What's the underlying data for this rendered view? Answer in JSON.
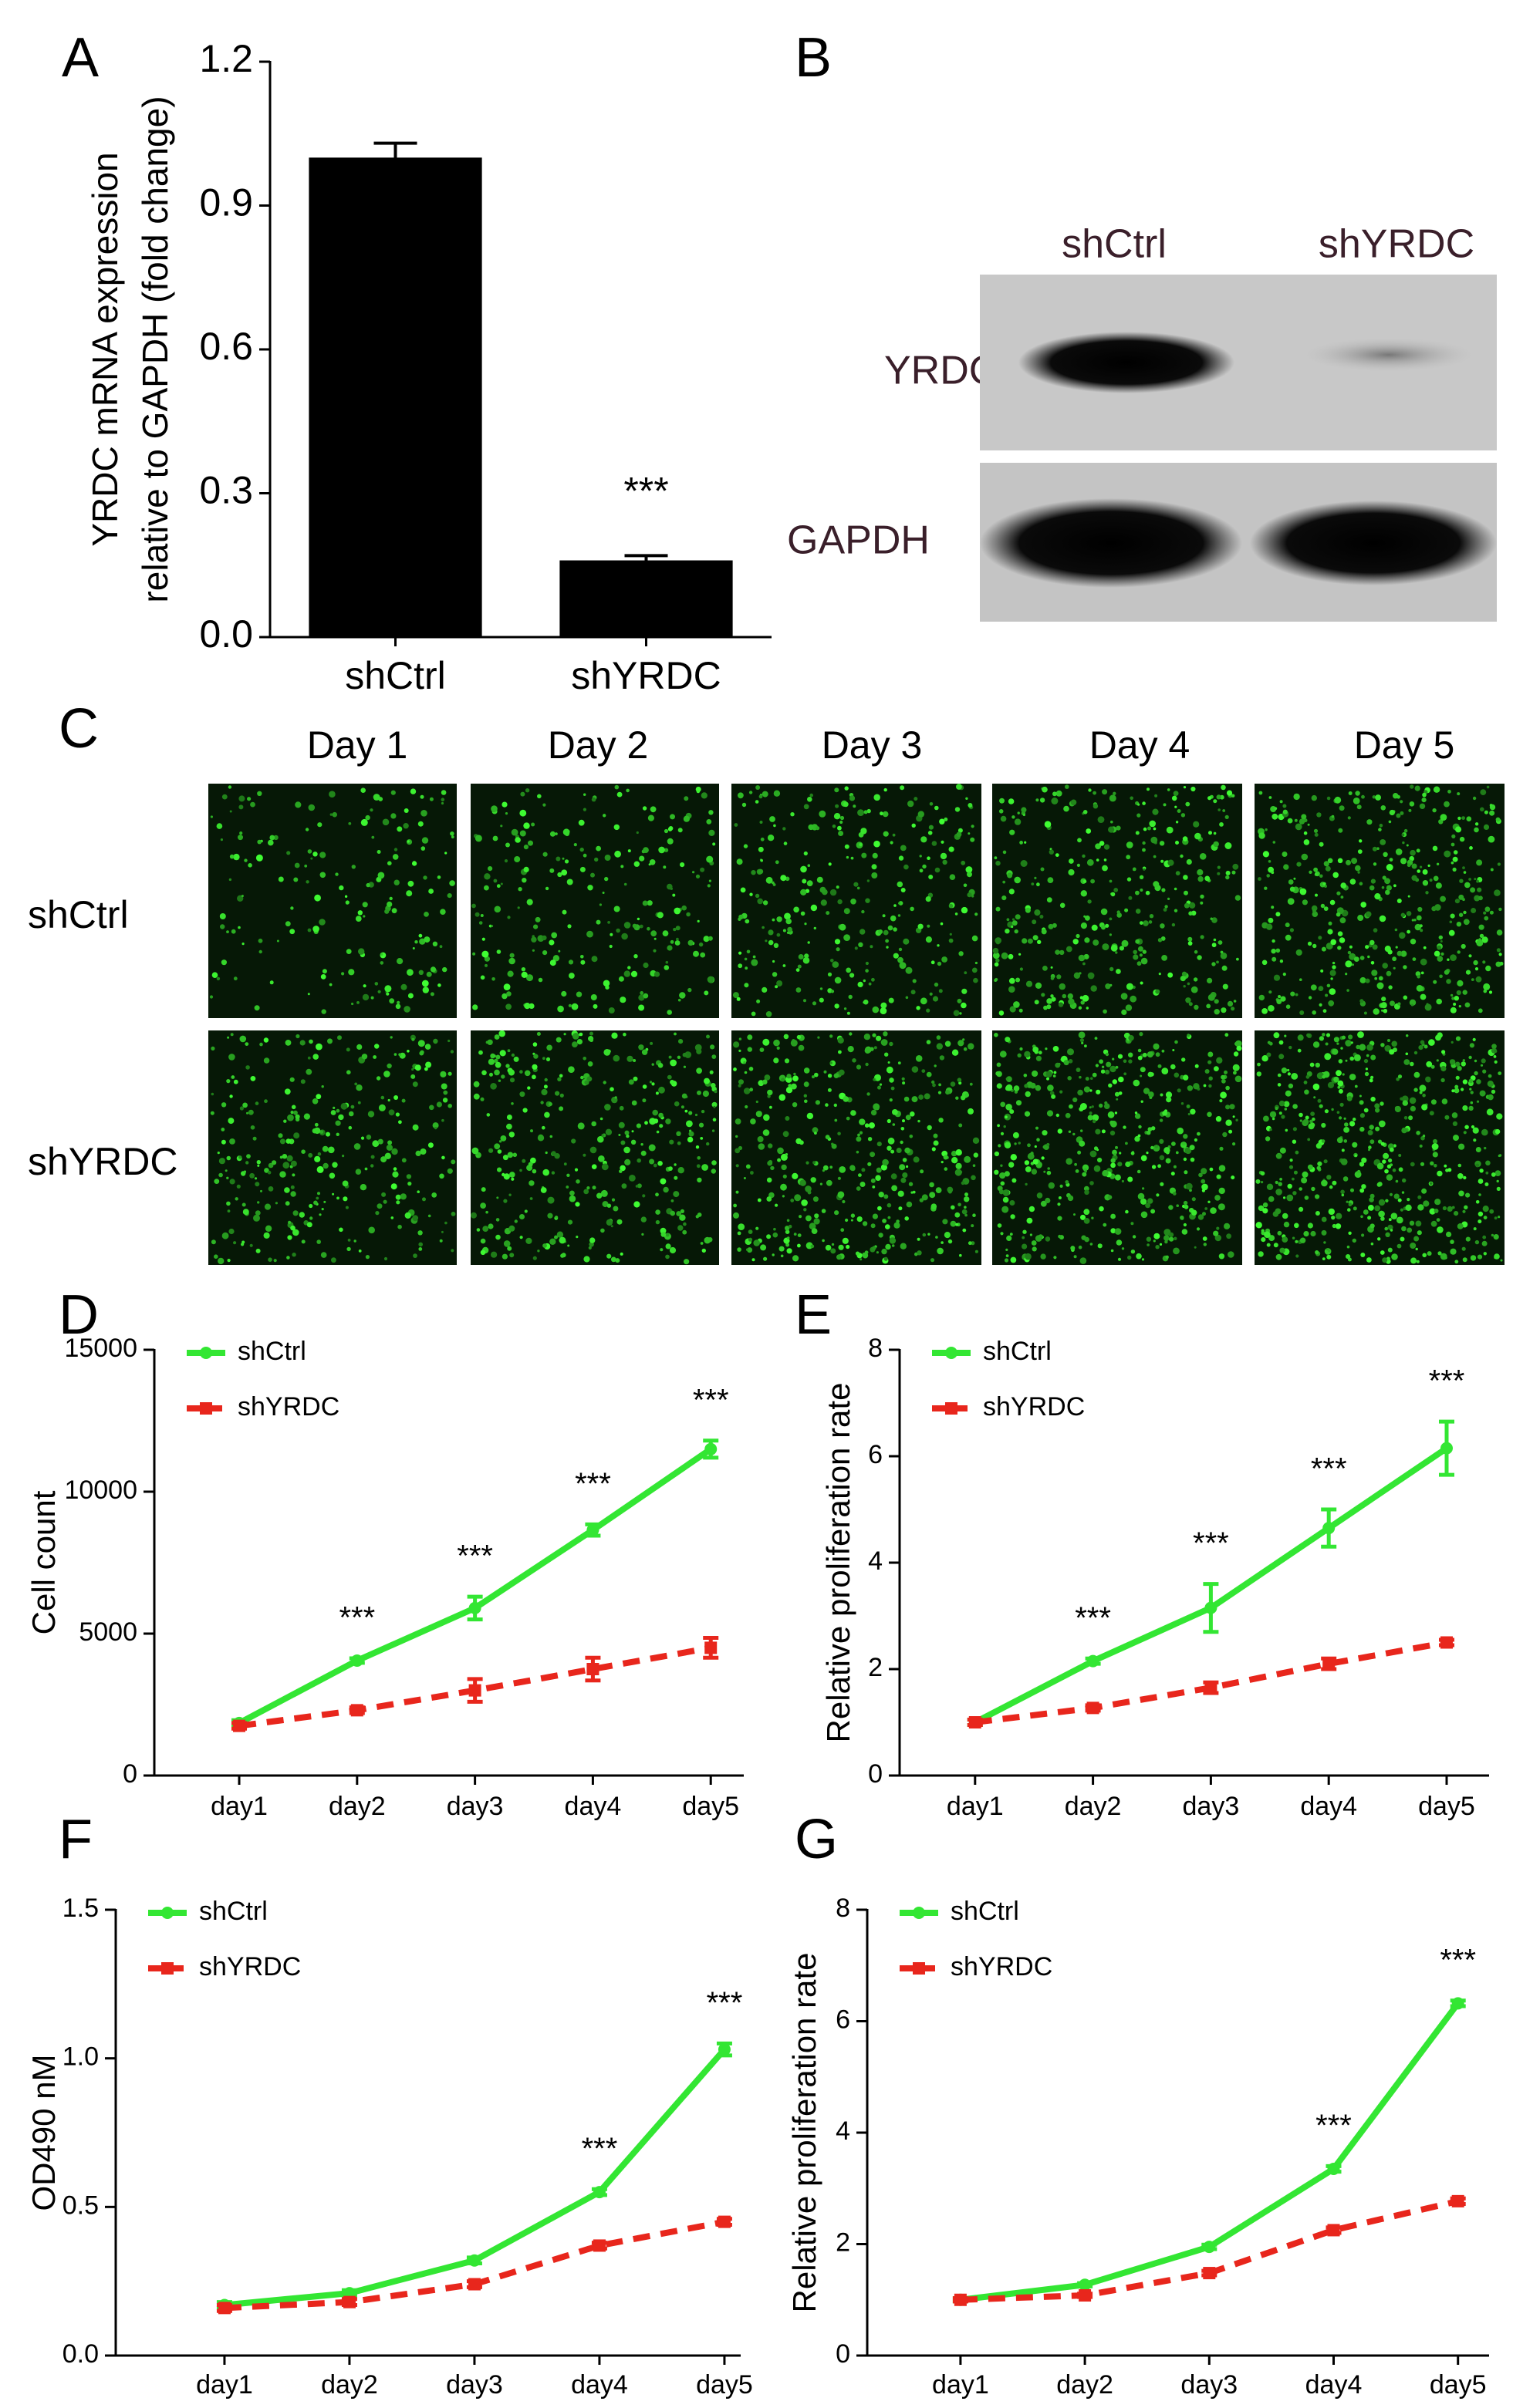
{
  "chart_data": [
    {
      "type": "bar",
      "panel": "A",
      "ylabel": [
        "YRDC mRNA expression",
        "relative to GAPDH (fold change)"
      ],
      "categories": [
        "shCtrl",
        "shYRDC"
      ],
      "values": [
        1.0,
        0.16
      ],
      "errors": [
        0.03,
        0.01
      ],
      "color": "#000000",
      "significance": [
        null,
        "***"
      ],
      "ylim": [
        0,
        1.2
      ],
      "yticks": [
        {
          "value": 0,
          "label": "0.0"
        },
        0.3,
        0.6,
        0.9,
        1.2
      ]
    },
    {
      "type": "line",
      "panel": "D",
      "ylabel": "Cell count",
      "categories": [
        "day1",
        "day2",
        "day3",
        "day4",
        "day5"
      ],
      "series": [
        {
          "name": "shCtrl",
          "color": "#33e633",
          "values": [
            1850,
            4050,
            5900,
            8650,
            11500
          ],
          "errors": [
            100,
            80,
            400,
            200,
            300
          ]
        },
        {
          "name": "shYRDC",
          "color": "#e8261c",
          "values": [
            1750,
            2300,
            3000,
            3750,
            4500
          ],
          "errors": [
            100,
            100,
            400,
            400,
            350
          ]
        }
      ],
      "significance": [
        null,
        "***",
        "***",
        "***",
        "***"
      ],
      "ylim": [
        0,
        15000
      ],
      "yticks": [
        0,
        5000,
        10000,
        15000
      ],
      "legend": "upper left"
    },
    {
      "type": "line",
      "panel": "E",
      "ylabel": "Relative proliferation rate",
      "categories": [
        "day1",
        "day2",
        "day3",
        "day4",
        "day5"
      ],
      "series": [
        {
          "name": "shCtrl",
          "color": "#33e633",
          "values": [
            1.0,
            2.15,
            3.15,
            4.65,
            6.15
          ],
          "errors": [
            0.05,
            0.05,
            0.45,
            0.35,
            0.5
          ]
        },
        {
          "name": "shYRDC",
          "color": "#e8261c",
          "values": [
            1.0,
            1.27,
            1.65,
            2.1,
            2.5
          ],
          "errors": [
            0.05,
            0.05,
            0.1,
            0.1,
            0.05
          ]
        }
      ],
      "significance": [
        null,
        "***",
        "***",
        "***",
        "***"
      ],
      "ylim": [
        0,
        8
      ],
      "yticks": [
        0,
        2,
        4,
        6,
        8
      ],
      "legend": "upper left"
    },
    {
      "type": "line",
      "panel": "F",
      "ylabel": "OD490 nM",
      "categories": [
        "day1",
        "day2",
        "day3",
        "day4",
        "day5"
      ],
      "series": [
        {
          "name": "shCtrl",
          "color": "#33e633",
          "values": [
            0.17,
            0.21,
            0.32,
            0.55,
            1.03
          ],
          "errors": [
            0.01,
            0.01,
            0.01,
            0.01,
            0.02
          ]
        },
        {
          "name": "shYRDC",
          "color": "#e8261c",
          "values": [
            0.16,
            0.18,
            0.24,
            0.37,
            0.45
          ],
          "errors": [
            0.01,
            0.01,
            0.01,
            0.01,
            0.01
          ]
        }
      ],
      "significance": [
        null,
        null,
        null,
        "***",
        "***"
      ],
      "ylim": [
        0,
        1.5
      ],
      "yticks": [
        {
          "value": 0,
          "label": "0.0"
        },
        0.5,
        {
          "value": 1,
          "label": "1.0"
        },
        1.5
      ],
      "legend": "upper left"
    },
    {
      "type": "line",
      "panel": "G",
      "ylabel": "Relative proliferation rate",
      "categories": [
        "day1",
        "day2",
        "day3",
        "day4",
        "day5"
      ],
      "series": [
        {
          "name": "shCtrl",
          "color": "#33e633",
          "values": [
            1.0,
            1.27,
            1.95,
            3.35,
            6.32
          ],
          "errors": [
            0.03,
            0.03,
            0.04,
            0.05,
            0.05
          ]
        },
        {
          "name": "shYRDC",
          "color": "#e8261c",
          "values": [
            1.0,
            1.08,
            1.48,
            2.25,
            2.77
          ],
          "errors": [
            0.03,
            0.03,
            0.04,
            0.05,
            0.05
          ]
        }
      ],
      "significance": [
        null,
        null,
        null,
        "***",
        "***"
      ],
      "ylim": [
        0,
        8
      ],
      "yticks": [
        0,
        2,
        4,
        6,
        8
      ],
      "legend": "upper left"
    }
  ],
  "blot": {
    "panel": "B",
    "columns": [
      "shCtrl",
      "shYRDC"
    ],
    "rows": [
      "YRDC",
      "GAPDH"
    ]
  },
  "micrographs": {
    "panel": "C",
    "columns": [
      "Day 1",
      "Day 2",
      "Day 3",
      "Day 4",
      "Day 5"
    ],
    "rows": [
      "shCtrl",
      "shYRDC"
    ]
  }
}
